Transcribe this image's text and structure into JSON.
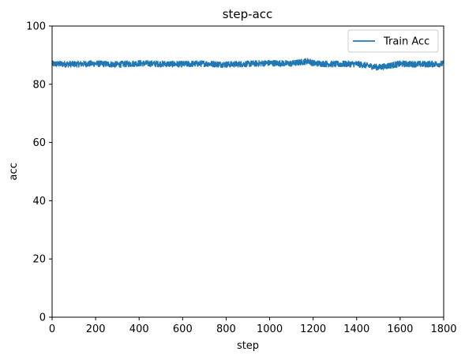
{
  "chart_data": {
    "type": "line",
    "title": "step-acc",
    "xlabel": "step",
    "ylabel": "acc",
    "xlim": [
      0,
      1800
    ],
    "ylim": [
      0,
      100
    ],
    "xticks": [
      0,
      200,
      400,
      600,
      800,
      1000,
      1200,
      1400,
      1600,
      1800
    ],
    "yticks": [
      0,
      20,
      40,
      60,
      80,
      100
    ],
    "grid": false,
    "legend": "top-right",
    "series": [
      {
        "name": "Train Acc",
        "color": "#1f77b4",
        "x_range": [
          0,
          1800
        ],
        "mean": 87.0,
        "band": [
          85.5,
          88.5
        ],
        "x": [
          0,
          100,
          200,
          300,
          400,
          500,
          600,
          700,
          800,
          900,
          1000,
          1100,
          1180,
          1200,
          1300,
          1400,
          1500,
          1600,
          1700,
          1800
        ],
        "y": [
          87.0,
          86.9,
          87.1,
          86.8,
          87.2,
          87.0,
          86.9,
          87.1,
          86.8,
          87.0,
          87.3,
          87.1,
          88.0,
          87.2,
          86.9,
          87.0,
          85.8,
          87.0,
          86.9,
          87.0
        ]
      }
    ]
  }
}
